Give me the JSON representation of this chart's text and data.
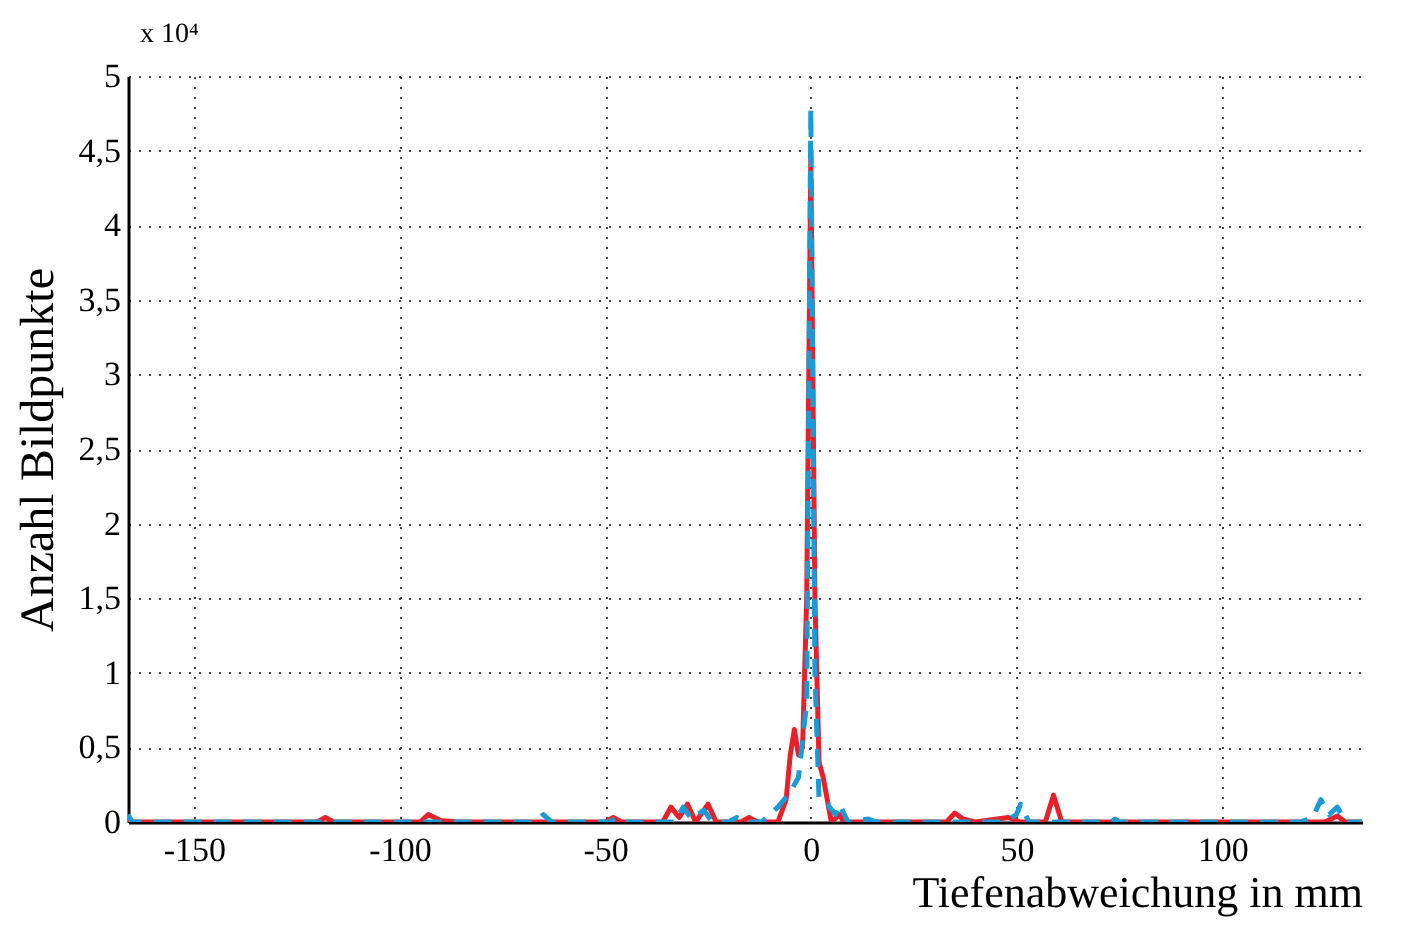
{
  "chart_data": {
    "type": "line",
    "xlabel": "Tiefenabweichung in mm",
    "ylabel": "Anzahl Bildpunkte",
    "annotations": [
      "x 10⁴"
    ],
    "xlim": [
      -166,
      134
    ],
    "xticks": [
      -150,
      -100,
      -50,
      0,
      50,
      100
    ],
    "ylim": [
      0,
      5
    ],
    "yticks": [
      0,
      {
        "value": 0.5,
        "label": "0,5"
      },
      1,
      {
        "value": 1.5,
        "label": "1,5"
      },
      2,
      {
        "value": 2.5,
        "label": "2,5"
      },
      3,
      {
        "value": 3.5,
        "label": "3,5"
      },
      4,
      {
        "value": 4.5,
        "label": "4,5"
      },
      5
    ],
    "grid": true,
    "legend": false,
    "series": [
      {
        "color": "#e8202a",
        "line_style": "solid",
        "x": [
          -166,
          -120,
          -118,
          -116,
          -95,
          -93,
          -90,
          -86,
          -50,
          -48,
          -46,
          -36,
          -34,
          -32,
          -30,
          -28,
          -25,
          -23,
          -17,
          -15,
          -13,
          -8,
          -6,
          -5,
          -4,
          -3,
          -2,
          -1,
          0,
          1,
          2,
          3,
          5,
          7,
          8,
          20,
          33,
          35,
          37,
          40,
          48,
          51,
          57,
          59,
          61,
          80,
          125,
          128,
          130,
          134
        ],
        "values": [
          0,
          0,
          0.03,
          0,
          0,
          0.05,
          0.01,
          0,
          0,
          0.03,
          0,
          0,
          0.1,
          0.03,
          0.12,
          0,
          0.12,
          0,
          0,
          0.03,
          0,
          0,
          0.15,
          0.45,
          0.62,
          0.45,
          0.5,
          1.5,
          4.45,
          1.5,
          0.4,
          0.3,
          0,
          0.05,
          0,
          0,
          0,
          0.06,
          0.02,
          0,
          0.03,
          0,
          0,
          0.18,
          0,
          0,
          0,
          0.04,
          0,
          0
        ]
      },
      {
        "color": "#1a9ad6",
        "line_style": "dashed",
        "x": [
          -166,
          -165,
          -67,
          -65,
          -63,
          -49,
          -47,
          -45,
          -33,
          -31,
          -29,
          -26,
          -24,
          -20,
          -18,
          -16,
          -12,
          -8,
          -5,
          -3,
          -1,
          0,
          1,
          2,
          4,
          6,
          7,
          9,
          14,
          16,
          47,
          50,
          51,
          53,
          73,
          74,
          75,
          119,
          122,
          124,
          126,
          128,
          130,
          134
        ],
        "values": [
          0.05,
          0,
          0,
          0.05,
          0,
          0,
          0.03,
          0,
          0,
          0.1,
          0.02,
          0.08,
          0,
          0,
          0.03,
          0,
          0,
          0.1,
          0.2,
          0.3,
          0.8,
          4.78,
          1,
          0.15,
          0.12,
          0.05,
          0.12,
          0,
          0.02,
          0,
          0,
          0.05,
          0.12,
          0,
          0,
          0.02,
          0,
          0,
          0.03,
          0.15,
          0.05,
          0.1,
          0,
          0
        ]
      }
    ]
  }
}
